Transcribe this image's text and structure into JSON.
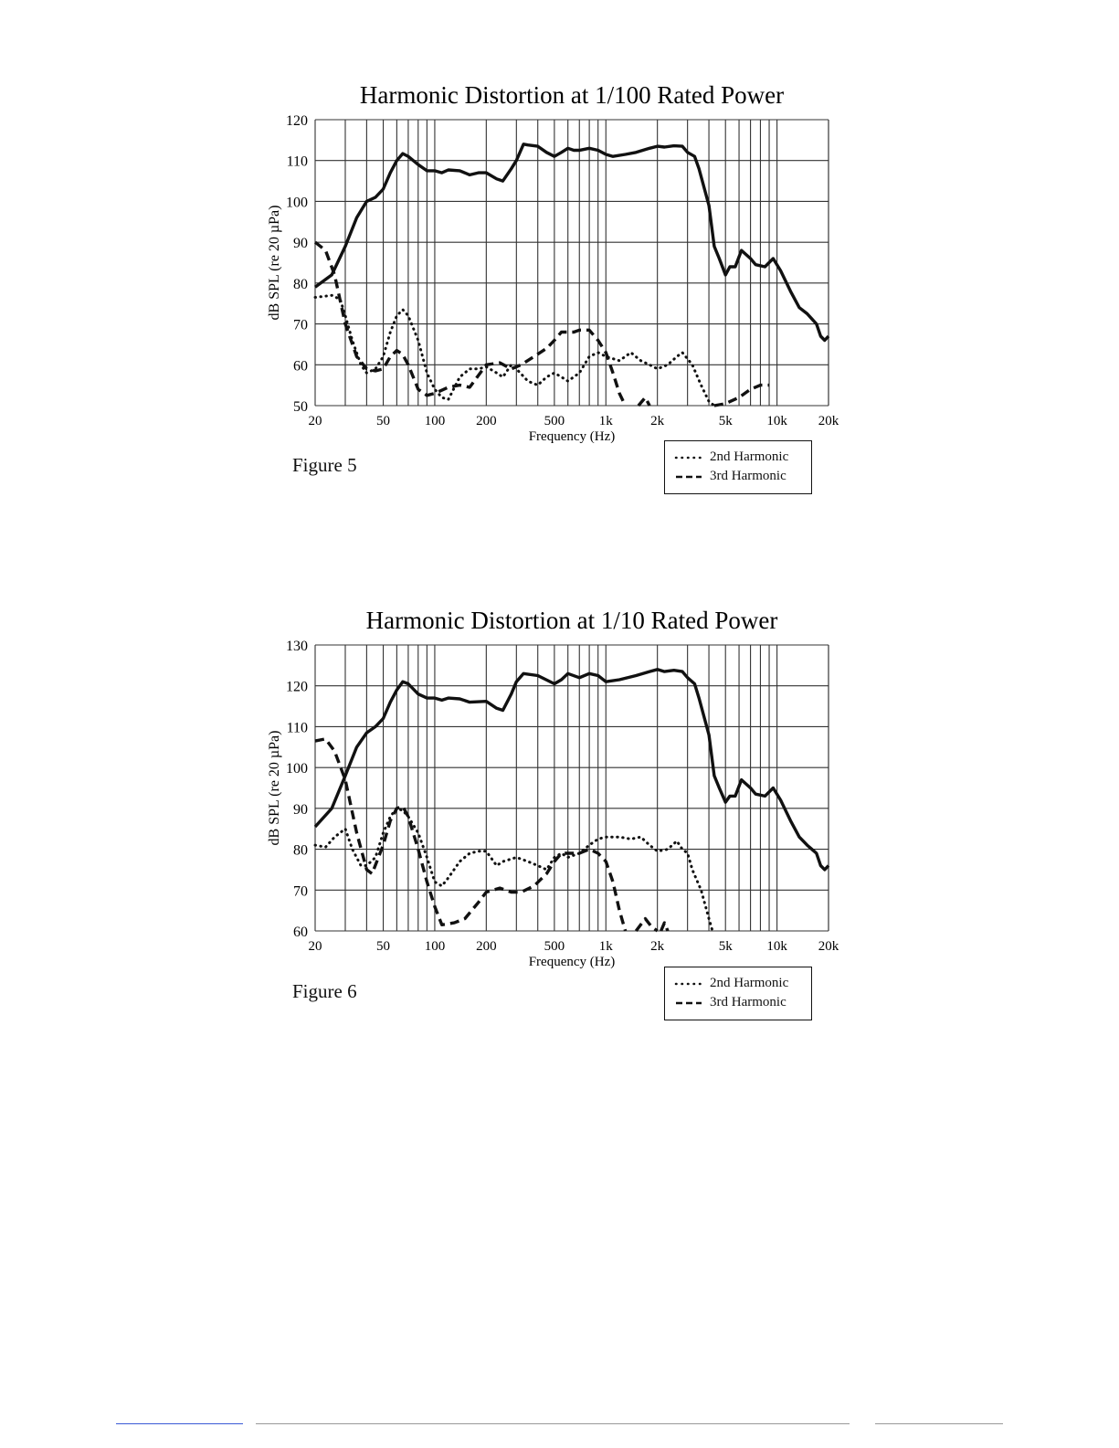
{
  "chart_data": [
    {
      "type": "line",
      "title": "Harmonic Distortion at 1/100 Rated Power",
      "xlabel": "Frequency (Hz)",
      "ylabel": "dB SPL (re 20 µPa)",
      "xscale": "log",
      "xlim": [
        20,
        20000
      ],
      "ylim": [
        50,
        120
      ],
      "xticks": [
        20,
        50,
        100,
        200,
        500,
        1000,
        2000,
        5000,
        10000,
        20000
      ],
      "xtick_labels": [
        "20",
        "50",
        "100",
        "200",
        "500",
        "1k",
        "2k",
        "5k",
        "10k",
        "20k"
      ],
      "yticks": [
        50,
        60,
        70,
        80,
        90,
        100,
        110,
        120
      ],
      "yticks_labels": [
        "50",
        "60",
        "70",
        "80",
        "90",
        "100",
        "110",
        "120"
      ],
      "grid": true,
      "legend_position": "bottom-right-outside",
      "series": [
        {
          "style": "solid",
          "x": [
            20,
            25,
            30,
            35,
            40,
            45,
            50,
            55,
            60,
            65,
            70,
            80,
            90,
            100,
            110,
            120,
            140,
            160,
            180,
            200,
            230,
            250,
            280,
            300,
            330,
            350,
            400,
            450,
            500,
            550,
            600,
            650,
            700,
            800,
            900,
            1000,
            1100,
            1300,
            1500,
            1800,
            2000,
            2200,
            2500,
            2800,
            3000,
            3300,
            3500,
            4000,
            4300,
            4600,
            5000,
            5300,
            5700,
            6200,
            7000,
            7500,
            8500,
            9500,
            10500,
            12000,
            13500,
            15000,
            17000,
            18000,
            19000,
            20000
          ],
          "y": [
            79,
            82,
            89,
            96,
            100,
            101,
            103,
            107,
            110,
            111.7,
            111,
            109,
            107.5,
            107.5,
            107,
            107.7,
            107.5,
            106.5,
            107,
            107,
            105.5,
            105,
            108,
            110,
            114,
            113.8,
            113.5,
            112,
            111,
            112,
            113,
            112.5,
            112.5,
            113,
            112.5,
            111.5,
            111,
            111.5,
            112,
            113,
            113.5,
            113.3,
            113.6,
            113.5,
            112,
            111,
            108,
            99,
            89,
            86,
            82,
            84,
            84,
            88,
            86,
            84.5,
            84,
            86,
            83,
            78,
            74,
            72.5,
            70,
            67,
            66,
            67
          ]
        },
        {
          "name": "2nd Harmonic",
          "style": "dotted",
          "x": [
            20,
            25,
            28,
            30,
            33,
            37,
            40,
            45,
            50,
            55,
            60,
            65,
            70,
            80,
            90,
            100,
            110,
            120,
            140,
            160,
            180,
            200,
            230,
            250,
            280,
            300,
            350,
            400,
            450,
            500,
            550,
            600,
            700,
            800,
            900,
            1000,
            1200,
            1400,
            1600,
            1800,
            2000,
            2300,
            2600,
            2800,
            3200,
            3600,
            4000,
            4300
          ],
          "y": [
            76.5,
            77,
            76,
            72,
            66,
            60,
            58,
            59,
            62,
            68,
            72,
            73.5,
            72,
            66,
            58,
            54,
            52,
            51.5,
            57,
            59,
            59,
            59.5,
            58,
            57,
            60,
            59,
            56,
            55,
            57,
            58,
            57,
            56,
            58,
            62,
            63,
            62,
            61,
            63,
            61,
            60,
            59,
            60,
            62,
            63,
            60,
            55,
            51,
            50
          ]
        },
        {
          "name": "3rd Harmonic",
          "style": "dashed",
          "segments": [
            {
              "x": [
                20,
                23,
                26,
                30,
                35,
                40,
                45,
                50,
                55,
                60,
                65,
                70,
                80,
                90,
                100,
                120,
                140,
                160,
                200,
                240,
                280,
                320,
                380,
                450,
                500,
                550,
                650,
                700,
                800,
                900,
                1000,
                1100,
                1200,
                1300
              ],
              "y": [
                90,
                88,
                82,
                70,
                62,
                59,
                58.5,
                59,
                62,
                63.5,
                62.5,
                60,
                54,
                52.5,
                53,
                54.5,
                55,
                54.5,
                60,
                60.5,
                59,
                60,
                62,
                64,
                66,
                68,
                68,
                68.5,
                68.5,
                66,
                63,
                58,
                53,
                50
              ]
            },
            {
              "x": [
                1550,
                1700,
                1800
              ],
              "y": [
                50,
                52,
                50
              ]
            },
            {
              "x": [
                4300,
                5000,
                6000,
                7000,
                8000,
                9000
              ],
              "y": [
                50,
                50.5,
                52,
                54,
                55,
                55
              ]
            }
          ]
        }
      ],
      "figure_label": "Figure 5"
    },
    {
      "type": "line",
      "title": "Harmonic Distortion at 1/10 Rated Power",
      "xlabel": "Frequency (Hz)",
      "ylabel": "dB SPL (re 20 µPa)",
      "xscale": "log",
      "xlim": [
        20,
        20000
      ],
      "ylim": [
        60,
        130
      ],
      "xticks": [
        20,
        50,
        100,
        200,
        500,
        1000,
        2000,
        5000,
        10000,
        20000
      ],
      "xtick_labels": [
        "20",
        "50",
        "100",
        "200",
        "500",
        "1k",
        "2k",
        "5k",
        "10k",
        "20k"
      ],
      "yticks": [
        60,
        70,
        80,
        90,
        100,
        110,
        120,
        130
      ],
      "yticks_labels": [
        "60",
        "70",
        "80",
        "90",
        "100",
        "110",
        "120",
        "130"
      ],
      "grid": true,
      "legend_position": "bottom-right-outside",
      "series": [
        {
          "style": "solid",
          "x": [
            20,
            25,
            30,
            35,
            40,
            45,
            50,
            55,
            60,
            65,
            70,
            80,
            90,
            100,
            110,
            120,
            140,
            160,
            200,
            230,
            250,
            280,
            300,
            330,
            400,
            500,
            550,
            600,
            700,
            800,
            900,
            1000,
            1200,
            1500,
            1800,
            2000,
            2200,
            2500,
            2800,
            3000,
            3300,
            3500,
            4000,
            4300,
            4600,
            5000,
            5300,
            5700,
            6200,
            7000,
            7500,
            8500,
            9500,
            10500,
            12000,
            13500,
            15000,
            17000,
            18000,
            19000,
            20000
          ],
          "y": [
            85.5,
            90,
            98,
            105,
            108.5,
            110,
            112,
            116,
            119,
            121,
            120.5,
            118,
            117,
            117,
            116.5,
            117,
            116.8,
            116,
            116.2,
            114.5,
            114,
            118,
            121,
            123,
            122.5,
            120.5,
            121.5,
            123,
            122,
            123,
            122.5,
            121,
            121.5,
            122.5,
            123.5,
            124,
            123.5,
            123.8,
            123.5,
            122,
            120.5,
            117,
            108,
            98,
            95,
            91.5,
            93,
            93,
            97,
            95,
            93.5,
            93,
            95,
            92,
            87,
            83,
            81,
            79,
            76,
            75,
            76
          ]
        },
        {
          "name": "2nd Harmonic",
          "style": "dotted",
          "x": [
            20,
            23,
            26,
            30,
            33,
            37,
            40,
            45,
            50,
            55,
            60,
            65,
            70,
            80,
            90,
            100,
            110,
            120,
            140,
            160,
            180,
            200,
            230,
            250,
            300,
            350,
            400,
            450,
            500,
            550,
            600,
            700,
            800,
            900,
            1000,
            1200,
            1400,
            1600,
            1800,
            2000,
            2300,
            2600,
            2800,
            3000,
            3200,
            3600,
            4000,
            4200
          ],
          "y": [
            81,
            80.5,
            83,
            85,
            80,
            76,
            76,
            78,
            84,
            88,
            90,
            89.5,
            88,
            84,
            78,
            72,
            71,
            73,
            77,
            79,
            79.5,
            79.5,
            76,
            77,
            78,
            77,
            76,
            75,
            78,
            79,
            78,
            79,
            81,
            82.5,
            83,
            83,
            82.5,
            83,
            81,
            79.5,
            80,
            82,
            80,
            79,
            75,
            70,
            63,
            60
          ]
        },
        {
          "name": "3rd Harmonic",
          "style": "dashed",
          "segments": [
            {
              "x": [
                20,
                23,
                26,
                30,
                35,
                40,
                43,
                50,
                55,
                60,
                65,
                70,
                80,
                90,
                100,
                110,
                130,
                150,
                180,
                200,
                240,
                280,
                320,
                380,
                450,
                500,
                550,
                600,
                700,
                800,
                900,
                1000,
                1100,
                1200,
                1300
              ],
              "y": [
                106.5,
                107,
                104,
                97,
                84,
                75,
                74,
                81,
                87,
                90,
                90.5,
                88,
                80,
                72,
                66,
                61.5,
                62,
                63,
                67,
                69.5,
                70.5,
                69.5,
                69.5,
                71,
                74,
                77,
                79,
                79,
                79,
                80,
                79,
                77,
                72,
                65,
                60
              ]
            },
            {
              "x": [
                1500,
                1700,
                1850,
                2000
              ],
              "y": [
                60,
                63,
                61,
                60
              ]
            },
            {
              "x": [
                2100,
                2200,
                2300
              ],
              "y": [
                60,
                62,
                60
              ]
            }
          ]
        }
      ],
      "figure_label": "Figure 6"
    }
  ],
  "legend": {
    "items": [
      "2nd Harmonic",
      "3rd Harmonic"
    ]
  }
}
